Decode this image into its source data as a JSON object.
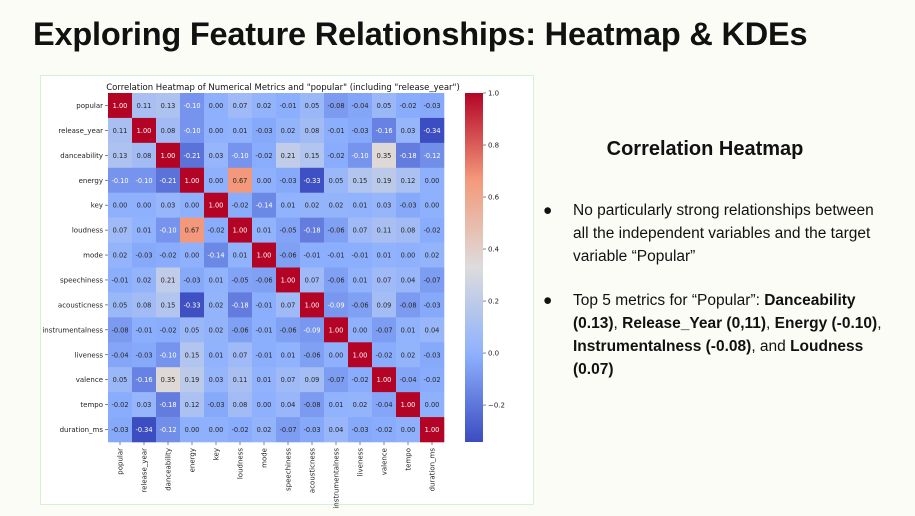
{
  "slide": {
    "title": "Exploring Feature Relationships: Heatmap & KDEs",
    "side_heading": "Correlation Heatmap",
    "bullets": [
      {
        "parts": [
          {
            "text": "No particularly strong relationships between all the independent variables and the target variable “Popular”",
            "bold": false
          }
        ]
      },
      {
        "parts": [
          {
            "text": "Top 5 metrics for “Popular”: ",
            "bold": false
          },
          {
            "text": "Danceability (0.13)",
            "bold": true
          },
          {
            "text": ", ",
            "bold": false
          },
          {
            "text": "Release_Year (0,11)",
            "bold": true
          },
          {
            "text": ", ",
            "bold": false
          },
          {
            "text": "Energy (-0.10)",
            "bold": true
          },
          {
            "text": ", ",
            "bold": false
          },
          {
            "text": "Instrumentalness (-0.08)",
            "bold": true
          },
          {
            "text": ", and ",
            "bold": false
          },
          {
            "text": "Loudness (0.07)",
            "bold": true
          }
        ]
      }
    ],
    "bullet_glyph": "●"
  },
  "chart_data": {
    "type": "heatmap",
    "title": "Correlation Heatmap of Numerical Metrics and \"popular\" (including \"release_year\")",
    "colormap": "coolwarm",
    "vmin": -0.342,
    "vmax": 1.0,
    "colorbar_ticks": [
      -0.2,
      0.0,
      0.2,
      0.4,
      0.6,
      0.8,
      1.0
    ],
    "colorbar_tick_labels": [
      "−0.2",
      "0.0",
      "0.2",
      "0.4",
      "0.6",
      "0.8",
      "1.0"
    ],
    "labels": [
      "popular",
      "release_year",
      "danceability",
      "energy",
      "key",
      "loudness",
      "mode",
      "speechiness",
      "acousticness",
      "instrumentalness",
      "liveness",
      "valence",
      "tempo",
      "duration_ms"
    ],
    "matrix": [
      [
        1.0,
        0.11,
        0.13,
        -0.1,
        0.0,
        0.07,
        0.02,
        -0.01,
        0.05,
        -0.08,
        -0.04,
        0.05,
        -0.02,
        -0.03
      ],
      [
        0.11,
        1.0,
        0.08,
        -0.1,
        0.0,
        0.01,
        -0.03,
        0.02,
        0.08,
        -0.01,
        -0.03,
        -0.16,
        0.03,
        -0.34
      ],
      [
        0.13,
        0.08,
        1.0,
        -0.21,
        0.03,
        -0.1,
        -0.02,
        0.21,
        0.15,
        -0.02,
        -0.1,
        0.35,
        -0.18,
        -0.12
      ],
      [
        -0.1,
        -0.1,
        -0.21,
        1.0,
        0.0,
        0.67,
        0.0,
        -0.03,
        -0.33,
        0.05,
        0.15,
        0.19,
        0.12,
        0.0
      ],
      [
        0.0,
        0.0,
        0.03,
        0.0,
        1.0,
        -0.02,
        -0.14,
        0.01,
        0.02,
        0.02,
        0.01,
        0.03,
        -0.03,
        0.0
      ],
      [
        0.07,
        0.01,
        -0.1,
        0.67,
        -0.02,
        1.0,
        0.01,
        -0.05,
        -0.18,
        -0.06,
        0.07,
        0.11,
        0.08,
        -0.02
      ],
      [
        0.02,
        -0.03,
        -0.02,
        0.0,
        -0.14,
        0.01,
        1.0,
        -0.06,
        -0.01,
        -0.01,
        -0.01,
        0.01,
        -0.0,
        0.02
      ],
      [
        -0.01,
        0.02,
        0.21,
        -0.03,
        0.01,
        -0.05,
        -0.06,
        1.0,
        0.07,
        -0.06,
        0.01,
        0.07,
        0.04,
        -0.07
      ],
      [
        0.05,
        0.08,
        0.15,
        -0.33,
        0.02,
        -0.18,
        -0.01,
        0.07,
        1.0,
        -0.09,
        -0.06,
        0.09,
        -0.08,
        -0.03
      ],
      [
        -0.08,
        -0.01,
        -0.02,
        0.05,
        0.02,
        -0.06,
        -0.01,
        -0.06,
        -0.09,
        1.0,
        -0.0,
        -0.07,
        0.01,
        0.04
      ],
      [
        -0.04,
        -0.03,
        -0.1,
        0.15,
        0.01,
        0.07,
        -0.01,
        0.01,
        -0.06,
        -0.0,
        1.0,
        -0.02,
        0.02,
        -0.03
      ],
      [
        0.05,
        -0.16,
        0.35,
        0.19,
        0.03,
        0.11,
        0.01,
        0.07,
        0.09,
        -0.07,
        -0.02,
        1.0,
        -0.04,
        -0.02
      ],
      [
        -0.02,
        0.03,
        -0.18,
        0.12,
        -0.03,
        0.08,
        -0.0,
        0.04,
        -0.08,
        0.01,
        0.02,
        -0.04,
        1.0,
        -0.0
      ],
      [
        -0.03,
        -0.34,
        -0.12,
        0.0,
        0.0,
        -0.02,
        0.02,
        -0.07,
        -0.03,
        0.04,
        -0.03,
        -0.02,
        -0.0,
        1.0
      ]
    ]
  }
}
